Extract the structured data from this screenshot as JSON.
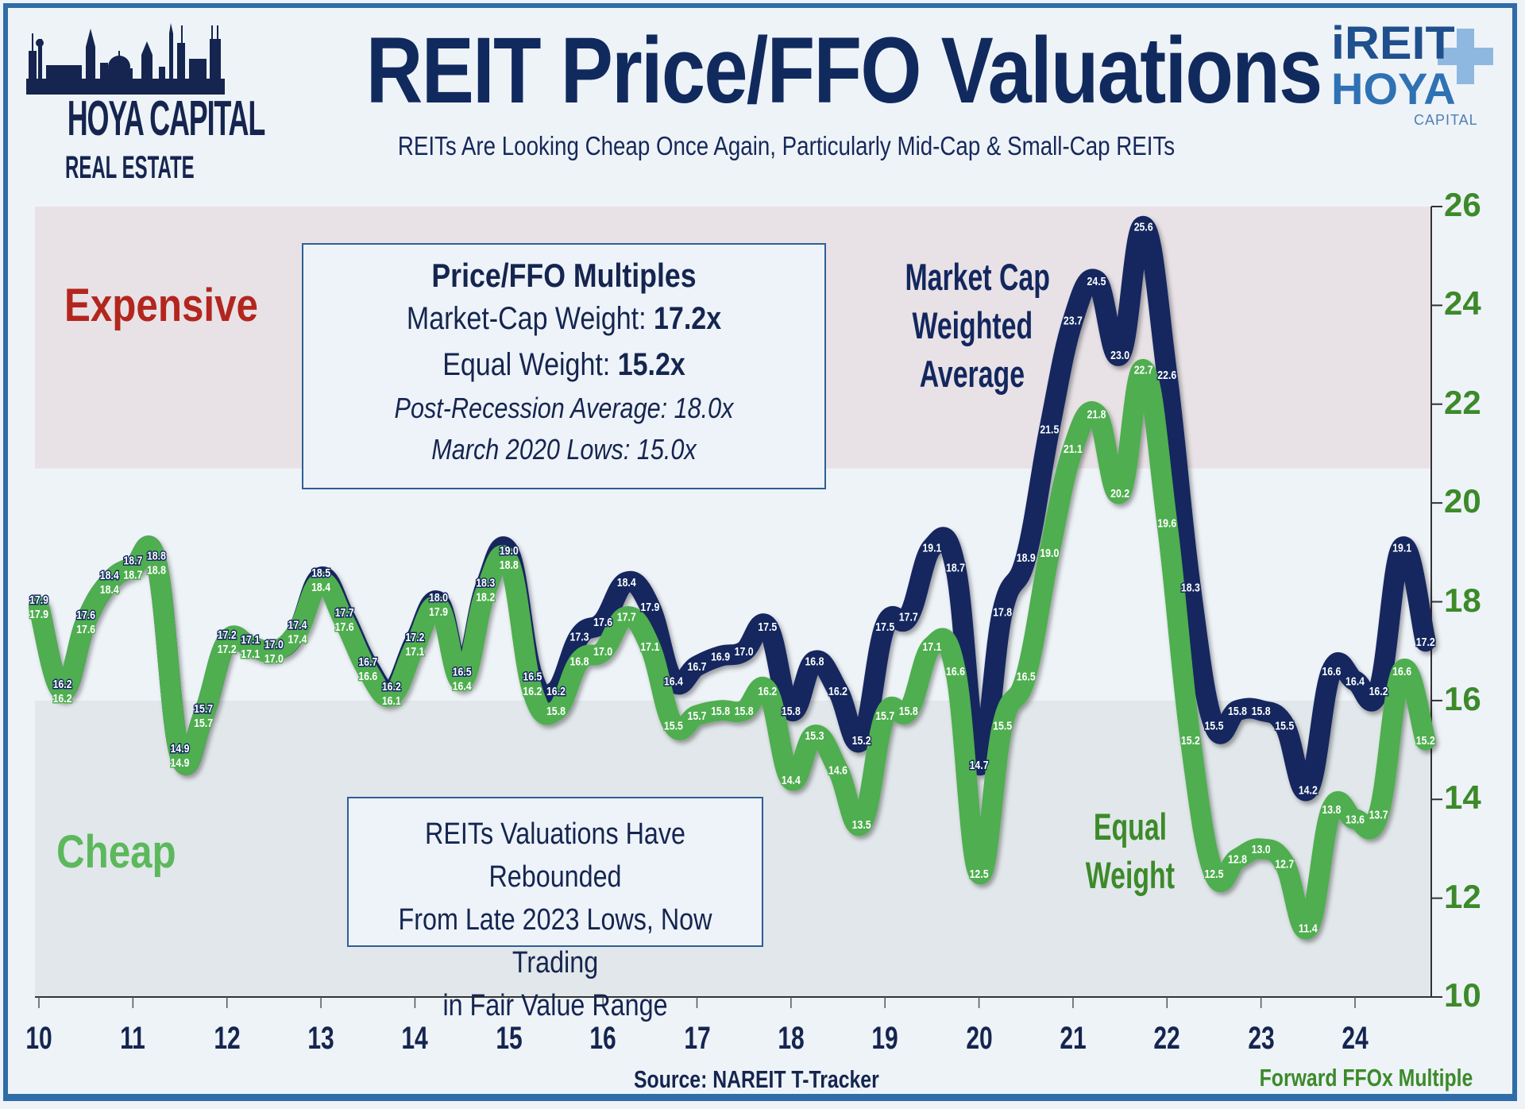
{
  "header": {
    "title": "REIT Price/FFO Valuations",
    "subtitle": "REITs Are Looking Cheap Once Again, Particularly Mid-Cap & Small-Cap REITs"
  },
  "logos": {
    "left": {
      "name": "HOYA CAPITAL",
      "sub": "REAL ESTATE"
    },
    "right": {
      "line1": "iREIT",
      "line2": "HOYA",
      "line3": "CAPITAL"
    }
  },
  "zones": {
    "expensive": {
      "label": "Expensive",
      "color": "#b3261e",
      "range": [
        20.7,
        26
      ]
    },
    "cheap": {
      "label": "Cheap",
      "color": "#5cb85c",
      "range": [
        10,
        16
      ]
    }
  },
  "info_box": {
    "heading": "Price/FFO Multiples",
    "mc_label": "Market-Cap Weight: ",
    "mc_value": "17.2x",
    "ew_label": "Equal Weight: ",
    "ew_value": "15.2x",
    "post_recession": "Post-Recession Average: 18.0x",
    "march_2020": "March 2020 Lows: 15.0x"
  },
  "note_box": {
    "lines": [
      "REITs Valuations Have Rebounded",
      "From Late 2023 Lows, Now Trading",
      "in Fair Value Range"
    ]
  },
  "series_labels": {
    "market_cap": [
      "Market Cap",
      "Weighted",
      "Average"
    ],
    "equal": [
      "Equal",
      "Weight"
    ]
  },
  "footer": {
    "source": "Source: NAREIT T-Tracker",
    "unit": "Forward FFOx Multiple"
  },
  "chart_data": {
    "type": "line",
    "title": "REIT Price/FFO Valuations",
    "ylabel": "Forward FFOx Multiple",
    "ylim": [
      10,
      26
    ],
    "yticks": [
      "10",
      "12",
      "14",
      "16",
      "18",
      "20",
      "22",
      "24",
      "26"
    ],
    "xlim": [
      2010,
      2024.75
    ],
    "xticks": [
      "10",
      "11",
      "12",
      "13",
      "14",
      "15",
      "16",
      "17",
      "18",
      "19",
      "20",
      "21",
      "22",
      "23",
      "24"
    ],
    "x_start": "2010 Q1",
    "frequency": "quarterly",
    "grid": false,
    "series": [
      {
        "name": "Market Cap Weighted Average",
        "color": "#13275e",
        "values": [
          17.9,
          16.2,
          17.6,
          18.4,
          18.7,
          18.8,
          14.9,
          15.7,
          17.2,
          17.1,
          17.0,
          17.4,
          18.5,
          17.7,
          16.7,
          16.2,
          17.2,
          18.0,
          16.5,
          18.3,
          19.0,
          16.5,
          16.2,
          17.3,
          17.6,
          18.4,
          17.9,
          16.4,
          16.7,
          16.9,
          17.0,
          17.5,
          15.8,
          16.8,
          16.2,
          15.2,
          17.5,
          17.7,
          19.1,
          18.7,
          14.7,
          17.8,
          18.9,
          21.5,
          23.7,
          24.5,
          23.0,
          25.6,
          22.6,
          18.3,
          15.5,
          15.8,
          15.8,
          15.5,
          14.2,
          16.6,
          16.4,
          16.2,
          19.1,
          17.2
        ]
      },
      {
        "name": "Equal Weight",
        "color": "#4fae4f",
        "values": [
          17.9,
          16.2,
          17.6,
          18.4,
          18.7,
          18.8,
          14.9,
          15.7,
          17.2,
          17.1,
          17.0,
          17.4,
          18.4,
          17.6,
          16.6,
          16.1,
          17.1,
          17.9,
          16.4,
          18.2,
          18.8,
          16.2,
          15.8,
          16.8,
          17.0,
          17.7,
          17.1,
          15.5,
          15.7,
          15.8,
          15.8,
          16.2,
          14.4,
          15.3,
          14.6,
          13.5,
          15.7,
          15.8,
          17.1,
          16.6,
          12.5,
          15.5,
          16.5,
          19.0,
          21.1,
          21.8,
          20.2,
          22.7,
          19.6,
          15.2,
          12.5,
          12.8,
          13.0,
          12.7,
          11.4,
          13.8,
          13.6,
          13.7,
          16.6,
          15.2
        ]
      }
    ]
  }
}
